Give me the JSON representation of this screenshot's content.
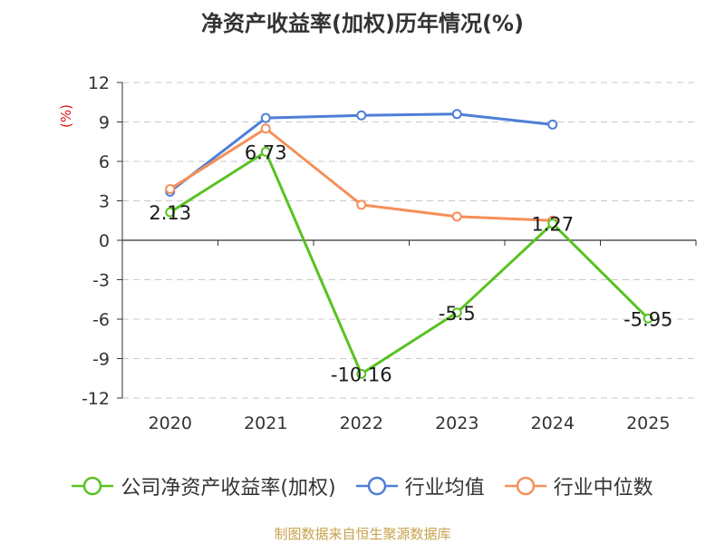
{
  "chart_data": {
    "type": "line",
    "title": "净资产收益率(加权)历年情况(%)",
    "ylabel": "(%)",
    "xlabel": "",
    "categories": [
      "2020",
      "2021",
      "2022",
      "2023",
      "2024",
      "2025"
    ],
    "y_ticks": [
      "12",
      "9",
      "6",
      "3",
      "0",
      "-3",
      "-6",
      "-9",
      "-12"
    ],
    "ylim": [
      -12,
      12
    ],
    "grid": true,
    "legend_position": "bottom",
    "series": [
      {
        "name": "公司净资产收益率(加权)",
        "color": "#58c222",
        "values": [
          2.13,
          6.73,
          -10.16,
          -5.5,
          1.27,
          -5.95
        ],
        "labels": [
          "2.13",
          "6.73",
          "-10.16",
          "-5.5",
          "1.27",
          "-5.95"
        ]
      },
      {
        "name": "行业均值",
        "color": "#4e7fd8",
        "values": [
          3.7,
          9.3,
          9.5,
          9.6,
          8.8,
          null
        ]
      },
      {
        "name": "行业中位数",
        "color": "#f58f5a",
        "values": [
          3.9,
          8.5,
          2.7,
          1.8,
          1.5,
          null
        ]
      }
    ],
    "source": "制图数据来自恒生聚源数据库"
  }
}
